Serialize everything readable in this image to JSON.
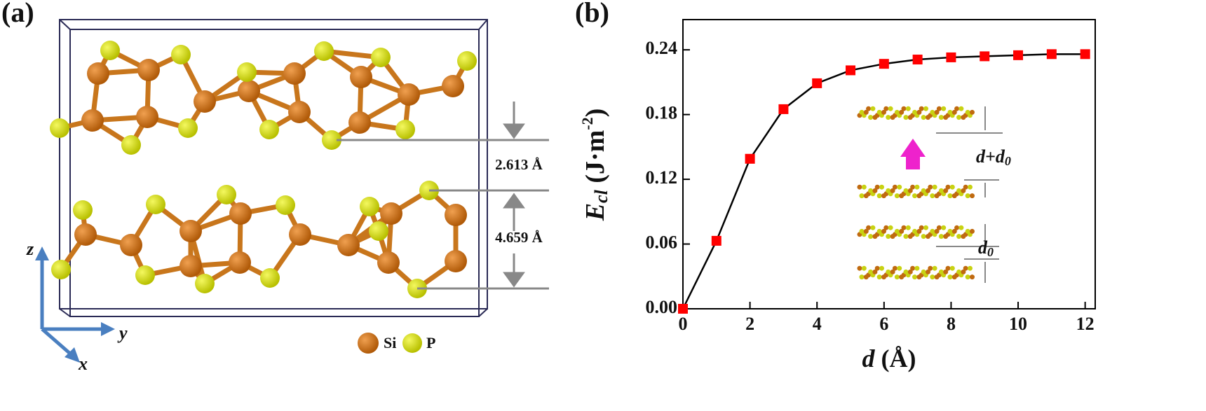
{
  "panel_a": {
    "label": "(a)",
    "distance_top": "2.613 Å",
    "distance_bottom": "4.659 Å",
    "axis_z": "z",
    "axis_y": "y",
    "axis_x": "x",
    "legend": [
      "Si",
      "P"
    ]
  },
  "chart_data": {
    "type": "line",
    "panel_label": "(b)",
    "x_label": [
      "d",
      " (Å)"
    ],
    "y_label": [
      "E",
      "cl",
      " (J·m",
      "-2",
      ")"
    ],
    "x": [
      0,
      1,
      2,
      3,
      4,
      5,
      6,
      7,
      8,
      9,
      10,
      11,
      12
    ],
    "series": [
      {
        "name": "Ecl",
        "color": "#ff0000",
        "line_color": "#000000",
        "values": [
          0,
          0.063,
          0.139,
          0.185,
          0.209,
          0.221,
          0.227,
          0.231,
          0.233,
          0.234,
          0.235,
          0.236,
          0.236
        ]
      }
    ],
    "xlim": [
      0,
      12.3
    ],
    "ylim": [
      0,
      0.268
    ],
    "xticks": [
      0,
      2,
      4,
      6,
      8,
      10,
      12
    ],
    "yticks": [
      {
        "value": 0,
        "label": "0.00"
      },
      {
        "value": 0.06,
        "label": "0.06"
      },
      {
        "value": 0.12,
        "label": "0.12"
      },
      {
        "value": 0.18,
        "label": "0.18"
      },
      {
        "value": 0.24,
        "label": "0.24"
      }
    ],
    "inset_labels": {
      "upper": [
        "d+d",
        "0"
      ],
      "lower": [
        "d",
        "0"
      ]
    }
  }
}
